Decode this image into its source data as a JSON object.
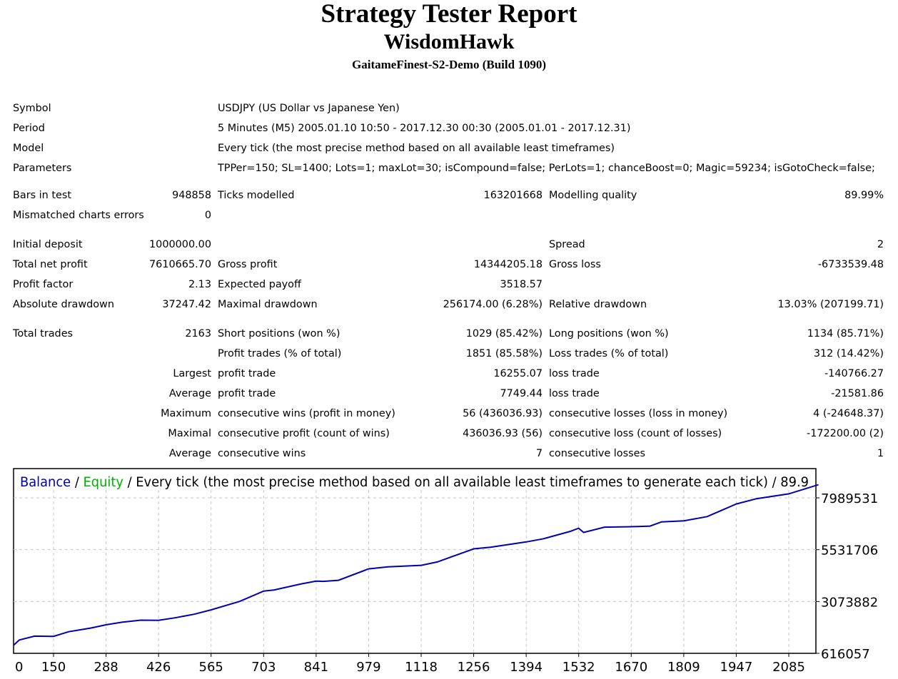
{
  "header": {
    "title": "Strategy Tester Report",
    "expert": "WisdomHawk",
    "server": "GaitameFinest-S2-Demo (Build 1090)"
  },
  "info": [
    {
      "label": "Symbol",
      "value": "USDJPY (US Dollar vs Japanese Yen)"
    },
    {
      "label": "Period",
      "value": "5 Minutes (M5) 2005.01.10 10:50 - 2017.12.30 00:30 (2005.01.01 - 2017.12.31)"
    },
    {
      "label": "Model",
      "value": "Every tick (the most precise method based on all available least timeframes)"
    },
    {
      "label": "Parameters",
      "value": "TPPer=150; SL=1400; Lots=1; maxLot=30; isCompound=false; PerLots=1; chanceBoost=0; Magic=59234; isGotoCheck=false;"
    }
  ],
  "stats": [
    [
      {
        "l": "Bars in test",
        "v": "948858"
      },
      {
        "l": "Ticks modelled",
        "v": "163201668"
      },
      {
        "l": "Modelling quality",
        "v": "89.99%"
      }
    ],
    [
      {
        "l": "Mismatched charts errors",
        "v": "0"
      },
      {
        "l": "",
        "v": ""
      },
      {
        "l": "",
        "v": ""
      }
    ],
    [
      {
        "l": "Initial deposit",
        "v": "1000000.00"
      },
      {
        "l": "",
        "v": ""
      },
      {
        "l": "Spread",
        "v": "2"
      }
    ],
    [
      {
        "l": "Total net profit",
        "v": "7610665.70"
      },
      {
        "l": "Gross profit",
        "v": "14344205.18"
      },
      {
        "l": "Gross loss",
        "v": "-6733539.48"
      }
    ],
    [
      {
        "l": "Profit factor",
        "v": "2.13"
      },
      {
        "l": "Expected payoff",
        "v": "3518.57"
      },
      {
        "l": "",
        "v": ""
      }
    ],
    [
      {
        "l": "Absolute drawdown",
        "v": "37247.42"
      },
      {
        "l": "Maximal drawdown",
        "v": "256174.00 (6.28%)"
      },
      {
        "l": "Relative drawdown",
        "v": "13.03% (207199.71)"
      }
    ],
    [
      {
        "l": "Total trades",
        "v": "2163"
      },
      {
        "l": "Short positions (won %)",
        "v": "1029 (85.42%)"
      },
      {
        "l": "Long positions (won %)",
        "v": "1134 (85.71%)"
      }
    ],
    [
      {
        "l": "",
        "v": ""
      },
      {
        "l": "Profit trades (% of total)",
        "v": "1851 (85.58%)"
      },
      {
        "l": "Loss trades (% of total)",
        "v": "312 (14.42%)"
      }
    ],
    [
      {
        "l": "",
        "v": "Largest"
      },
      {
        "l": "profit trade",
        "v": "16255.07"
      },
      {
        "l": "loss trade",
        "v": "-140766.27"
      }
    ],
    [
      {
        "l": "",
        "v": "Average"
      },
      {
        "l": "profit trade",
        "v": "7749.44"
      },
      {
        "l": "loss trade",
        "v": "-21581.86"
      }
    ],
    [
      {
        "l": "",
        "v": "Maximum"
      },
      {
        "l": "consecutive wins (profit in money)",
        "v": "56 (436036.93)"
      },
      {
        "l": "consecutive losses (loss in money)",
        "v": "4 (-24648.37)"
      }
    ],
    [
      {
        "l": "",
        "v": "Maximal"
      },
      {
        "l": "consecutive profit (count of wins)",
        "v": "436036.93 (56)"
      },
      {
        "l": "consecutive loss (count of losses)",
        "v": "-172200.00 (2)"
      }
    ],
    [
      {
        "l": "",
        "v": "Average"
      },
      {
        "l": "consecutive wins",
        "v": "7"
      },
      {
        "l": "consecutive losses",
        "v": "1"
      }
    ]
  ],
  "chart_data": {
    "type": "line",
    "legend": {
      "balance": "Balance",
      "sep1": " / ",
      "equity": "Equity",
      "rest": " / Every tick (the most precise method based on all available least timeframes to generate each tick) / 89.9"
    },
    "colors": {
      "balance": "#0000b0",
      "equity": "#00b000",
      "grid": "#c8c8c8"
    },
    "x_ticks": [
      "0",
      "150",
      "288",
      "426",
      "565",
      "703",
      "841",
      "979",
      "1118",
      "1256",
      "1394",
      "1532",
      "1670",
      "1809",
      "1947",
      "2085"
    ],
    "y_ticks": [
      "616057",
      "3073882",
      "5531706",
      "7989531"
    ],
    "ylim": [
      616057,
      7989531
    ],
    "x": [
      0,
      60,
      100,
      150,
      190,
      250,
      288,
      330,
      380,
      426,
      470,
      520,
      565,
      640,
      703,
      730,
      800,
      841,
      860,
      900,
      979,
      1030,
      1118,
      1160,
      1256,
      1300,
      1394,
      1440,
      1510,
      1532,
      1545,
      1600,
      1670,
      1720,
      1750,
      1809,
      1870,
      1947,
      2000,
      2085,
      2163
    ],
    "balance": [
      1000000,
      1250000,
      1430000,
      1420000,
      1640000,
      1820000,
      1970000,
      2090000,
      2190000,
      2180000,
      2300000,
      2470000,
      2680000,
      3080000,
      3570000,
      3620000,
      3900000,
      4040000,
      4030000,
      4080000,
      4620000,
      4720000,
      4790000,
      4950000,
      5570000,
      5650000,
      5900000,
      6050000,
      6400000,
      6550000,
      6350000,
      6600000,
      6620000,
      6650000,
      6850000,
      6900000,
      7100000,
      7700000,
      7950000,
      8180000,
      8610666
    ]
  }
}
